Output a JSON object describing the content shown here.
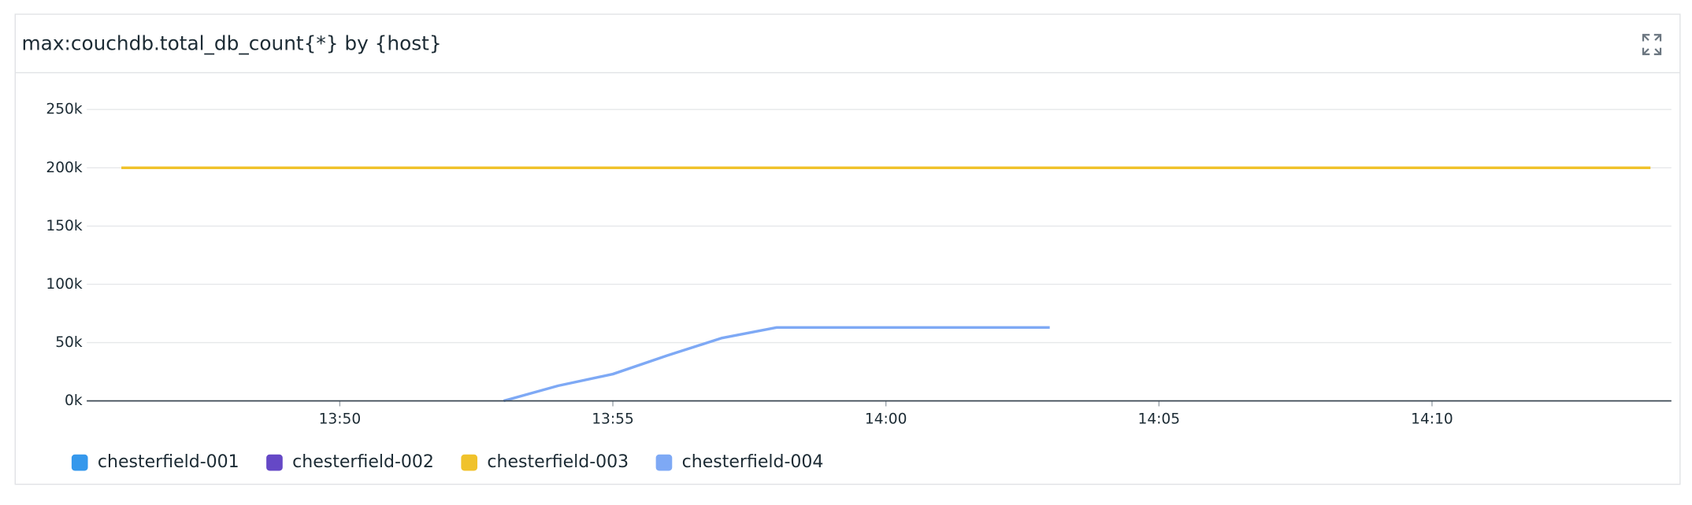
{
  "chart_data": {
    "type": "line",
    "title": "max:couchdb.total_db_count{*} by {host}",
    "x": [
      "13:46",
      "13:47",
      "13:48",
      "13:49",
      "13:50",
      "13:51",
      "13:52",
      "13:53",
      "13:54",
      "13:55",
      "13:56",
      "13:57",
      "13:58",
      "13:59",
      "14:00",
      "14:01",
      "14:02",
      "14:03",
      "14:04",
      "14:05",
      "14:06",
      "14:07",
      "14:08",
      "14:09",
      "14:10",
      "14:11",
      "14:12",
      "14:13",
      "14:14"
    ],
    "xlim": [
      "13:45:22",
      "14:14:23"
    ],
    "xticks": [
      "13:50",
      "13:55",
      "14:00",
      "14:05",
      "14:10"
    ],
    "ylim": [
      0,
      250000
    ],
    "yticks": [
      {
        "value": 0,
        "label": "0k"
      },
      {
        "value": 50000,
        "label": "50k"
      },
      {
        "value": 100000,
        "label": "100k"
      },
      {
        "value": 150000,
        "label": "150k"
      },
      {
        "value": 200000,
        "label": "200k"
      },
      {
        "value": 250000,
        "label": "250k"
      }
    ],
    "grid": true,
    "legend": "bottom",
    "series": [
      {
        "name": "chesterfield-001",
        "color": "#3598ec",
        "values": [
          null,
          null,
          null,
          null,
          null,
          null,
          null,
          null,
          null,
          null,
          null,
          null,
          null,
          null,
          null,
          null,
          null,
          null,
          null,
          null,
          null,
          null,
          null,
          null,
          null,
          null,
          null,
          null,
          null
        ]
      },
      {
        "name": "chesterfield-002",
        "color": "#6548c6",
        "values": [
          null,
          null,
          null,
          null,
          null,
          null,
          null,
          null,
          null,
          null,
          null,
          null,
          null,
          null,
          null,
          null,
          null,
          null,
          null,
          null,
          null,
          null,
          null,
          null,
          null,
          null,
          null,
          null,
          null
        ]
      },
      {
        "name": "chesterfield-003",
        "color": "#f0c22b",
        "values": [
          200000,
          200000,
          200000,
          200000,
          200000,
          200000,
          200000,
          200000,
          200000,
          200000,
          200000,
          200000,
          200000,
          200000,
          200000,
          200000,
          200000,
          200000,
          200000,
          200000,
          200000,
          200000,
          200000,
          200000,
          200000,
          200000,
          200000,
          200000,
          200000
        ]
      },
      {
        "name": "chesterfield-004",
        "color": "#7ea9f5",
        "values": [
          null,
          null,
          null,
          null,
          null,
          null,
          null,
          0,
          13000,
          23000,
          39000,
          54000,
          63000,
          63000,
          63000,
          63000,
          63000,
          63000,
          null,
          null,
          null,
          null,
          null,
          null,
          null,
          null,
          null,
          null,
          null
        ]
      }
    ]
  }
}
